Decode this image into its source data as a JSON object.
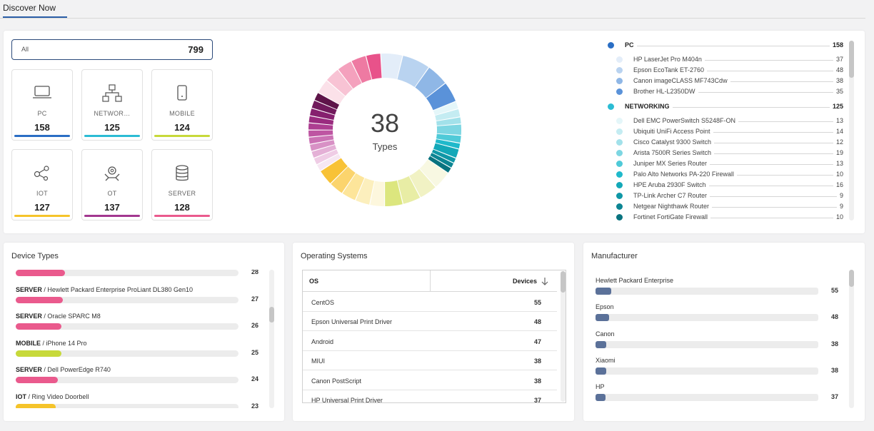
{
  "tab": {
    "label": "Discover Now"
  },
  "summary": {
    "all_label": "All",
    "all_count": "799"
  },
  "cards": [
    {
      "key": "pc",
      "label": "PC",
      "count": "158",
      "color": "#2a6ec4",
      "icon": "laptop-icon"
    },
    {
      "key": "networking",
      "label": "NETWOR…",
      "count": "125",
      "color": "#2bbcd4",
      "icon": "network-icon"
    },
    {
      "key": "mobile",
      "label": "MOBILE",
      "count": "124",
      "color": "#c7d93a",
      "icon": "mobile-icon"
    },
    {
      "key": "iot",
      "label": "IOT",
      "count": "127",
      "color": "#f5c42a",
      "icon": "iot-icon"
    },
    {
      "key": "ot",
      "label": "OT",
      "count": "137",
      "color": "#a2378f",
      "icon": "ot-icon"
    },
    {
      "key": "server",
      "label": "SERVER",
      "count": "128",
      "color": "#ea5a8d",
      "icon": "database-icon"
    }
  ],
  "donut": {
    "value": "38",
    "label": "Types"
  },
  "chart_data": {
    "type": "pie",
    "variant": "donut",
    "center_value": "38",
    "center_label": "Types",
    "groups": [
      {
        "name": "PC",
        "total": 158,
        "colors": [
          "#e3edf9",
          "#b9d3f0",
          "#8fb7e6",
          "#5a92d9"
        ],
        "values": [
          37,
          48,
          38,
          35
        ]
      },
      {
        "name": "NETWORKING",
        "total": 125,
        "colors": [
          "#e4f6f9",
          "#c4ecf2",
          "#a2e1ea",
          "#7dd6e2",
          "#4fcad8",
          "#1fb9cb",
          "#13a8b8",
          "#0f97a6",
          "#0c8593",
          "#09737f"
        ],
        "values": [
          13,
          14,
          12,
          19,
          13,
          10,
          16,
          9,
          9,
          10
        ]
      },
      {
        "name": "MOBILE",
        "total": 124,
        "colors": [
          "#f8f8e2",
          "#f1f2c4",
          "#e8eda5",
          "#dce67e"
        ],
        "values": [
          31,
          31,
          31,
          31
        ]
      },
      {
        "name": "IOT",
        "total": 127,
        "colors": [
          "#fdf7dd",
          "#fcefbd",
          "#fde59a",
          "#fbd46d",
          "#f8c236"
        ],
        "values": [
          25,
          25,
          25,
          25,
          27
        ]
      },
      {
        "name": "OT",
        "total": 137,
        "colors": [
          "#f6e7f2",
          "#efcce5",
          "#e4b0d6",
          "#d891c5",
          "#cb72b4",
          "#be55a2",
          "#ad3e91",
          "#9a2b7f",
          "#86206e",
          "#711a5c",
          "#5e1449"
        ],
        "values": [
          12,
          12,
          12,
          12,
          12,
          12,
          12,
          12,
          13,
          14,
          14
        ]
      },
      {
        "name": "SERVER",
        "total": 128,
        "colors": [
          "#fbe1e9",
          "#f8c3d4",
          "#f4a1bd",
          "#ee7aa2",
          "#e8528a"
        ],
        "values": [
          25,
          26,
          26,
          26,
          25
        ]
      }
    ]
  },
  "legend": [
    {
      "type": "cat",
      "name": "PC",
      "value": "158",
      "color": "#2a6ec4"
    },
    {
      "type": "item",
      "name": "HP LaserJet Pro M404n",
      "value": "37",
      "color": "#e3edf9"
    },
    {
      "type": "item",
      "name": "Epson EcoTank ET-2760",
      "value": "48",
      "color": "#b9d3f0"
    },
    {
      "type": "item",
      "name": "Canon imageCLASS MF743Cdw",
      "value": "38",
      "color": "#8fb7e6"
    },
    {
      "type": "item",
      "name": "Brother HL-L2350DW",
      "value": "35",
      "color": "#5a92d9"
    },
    {
      "type": "cat",
      "name": "NETWORKING",
      "value": "125",
      "color": "#2bbcd4"
    },
    {
      "type": "item",
      "name": "Dell EMC PowerSwitch S5248F-ON",
      "value": "13",
      "color": "#e4f6f9"
    },
    {
      "type": "item",
      "name": "Ubiquiti UniFi Access Point",
      "value": "14",
      "color": "#c4ecf2"
    },
    {
      "type": "item",
      "name": "Cisco Catalyst 9300 Switch",
      "value": "12",
      "color": "#a2e1ea"
    },
    {
      "type": "item",
      "name": "Arista 7500R Series Switch",
      "value": "19",
      "color": "#7dd6e2"
    },
    {
      "type": "item",
      "name": "Juniper MX Series Router",
      "value": "13",
      "color": "#4fcad8"
    },
    {
      "type": "item",
      "name": "Palo Alto Networks PA-220 Firewall",
      "value": "10",
      "color": "#1fb9cb"
    },
    {
      "type": "item",
      "name": "HPE Aruba 2930F Switch",
      "value": "16",
      "color": "#13a8b8"
    },
    {
      "type": "item",
      "name": "TP-Link Archer C7 Router",
      "value": "9",
      "color": "#0f97a6"
    },
    {
      "type": "item",
      "name": "Netgear Nighthawk Router",
      "value": "9",
      "color": "#0c8593"
    },
    {
      "type": "item",
      "name": "Fortinet FortiGate Firewall",
      "value": "10",
      "color": "#09737f"
    }
  ],
  "device_types": {
    "title": "Device Types",
    "items": [
      {
        "category": "",
        "name": "",
        "value": "28",
        "fraction": 0.22,
        "color": "#ea5a8d"
      },
      {
        "category": "SERVER",
        "name": " / Hewlett Packard Enterprise ProLiant DL380 Gen10",
        "value": "27",
        "fraction": 0.21,
        "color": "#ea5a8d"
      },
      {
        "category": "SERVER",
        "name": " / Oracle SPARC M8",
        "value": "26",
        "fraction": 0.205,
        "color": "#ea5a8d"
      },
      {
        "category": "MOBILE",
        "name": " / iPhone 14 Pro",
        "value": "25",
        "fraction": 0.205,
        "color": "#c7d93a"
      },
      {
        "category": "SERVER",
        "name": " / Dell PowerEdge R740",
        "value": "24",
        "fraction": 0.19,
        "color": "#ea5a8d"
      },
      {
        "category": "IOT",
        "name": " / Ring Video Doorbell",
        "value": "23",
        "fraction": 0.18,
        "color": "#f5c42a"
      }
    ]
  },
  "operating_systems": {
    "title": "Operating Systems",
    "col_os": "OS",
    "col_devices": "Devices",
    "rows": [
      {
        "name": "CentOS",
        "value": "55"
      },
      {
        "name": "Epson Universal Print Driver",
        "value": "48"
      },
      {
        "name": "Android",
        "value": "47"
      },
      {
        "name": "MIUI",
        "value": "38"
      },
      {
        "name": "Canon PostScript",
        "value": "38"
      },
      {
        "name": "HP Universal Print Driver",
        "value": "37"
      }
    ]
  },
  "manufacturer": {
    "title": "Manufacturer",
    "color": "#5b7199",
    "items": [
      {
        "name": "Hewlett Packard Enterprise",
        "value": "55",
        "fraction": 0.07
      },
      {
        "name": "Epson",
        "value": "48",
        "fraction": 0.06
      },
      {
        "name": "Canon",
        "value": "38",
        "fraction": 0.048
      },
      {
        "name": "Xiaomi",
        "value": "38",
        "fraction": 0.048
      },
      {
        "name": "HP",
        "value": "37",
        "fraction": 0.046
      }
    ]
  }
}
